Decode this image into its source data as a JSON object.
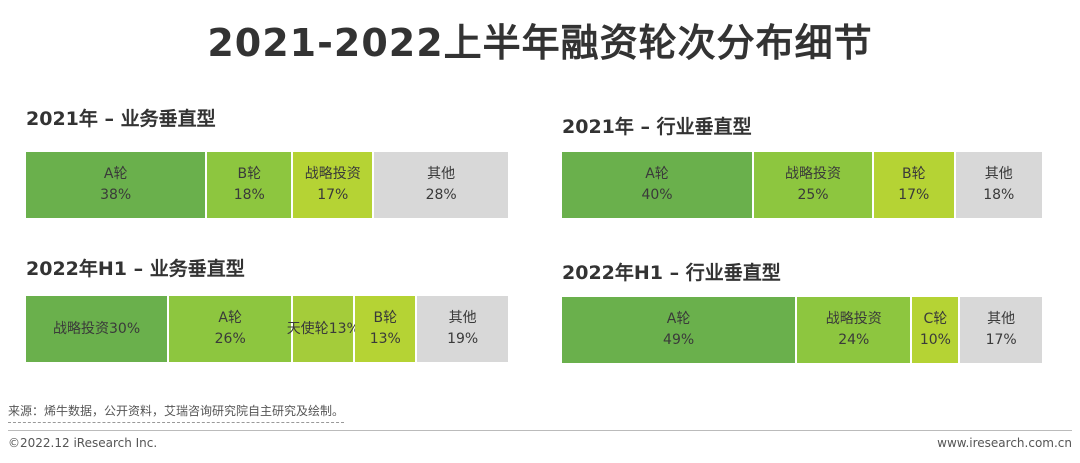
{
  "page": {
    "title": "2021-2022上半年融资轮次分布细节"
  },
  "chart_data": [
    {
      "type": "bar",
      "stacked": true,
      "orientation": "horizontal",
      "title": "2021年 – 业务垂直型",
      "unit": "%",
      "segments": [
        {
          "label": "A轮",
          "value": 38,
          "value_label": "38%",
          "color": "#6ab04c"
        },
        {
          "label": "B轮",
          "value": 18,
          "value_label": "18%",
          "color": "#8dc63f"
        },
        {
          "label": "战略投资",
          "value": 17,
          "value_label": "17%",
          "color": "#b5d334"
        },
        {
          "label": "其他",
          "value": 28,
          "value_label": "28%",
          "color": "#d8d8d8"
        }
      ]
    },
    {
      "type": "bar",
      "stacked": true,
      "orientation": "horizontal",
      "title": "2021年 – 行业垂直型",
      "unit": "%",
      "segments": [
        {
          "label": "A轮",
          "value": 40,
          "value_label": "40%",
          "color": "#6ab04c"
        },
        {
          "label": "战略投资",
          "value": 25,
          "value_label": "25%",
          "color": "#8dc63f"
        },
        {
          "label": "B轮",
          "value": 17,
          "value_label": "17%",
          "color": "#b5d334"
        },
        {
          "label": "其他",
          "value": 18,
          "value_label": "18%",
          "color": "#d8d8d8"
        }
      ]
    },
    {
      "type": "bar",
      "stacked": true,
      "orientation": "horizontal",
      "title": "2022年H1 – 业务垂直型",
      "unit": "%",
      "segments": [
        {
          "label": "战略投资",
          "value": 30,
          "value_label": "30%",
          "inline": true,
          "color": "#6ab04c"
        },
        {
          "label": "A轮",
          "value": 26,
          "value_label": "26%",
          "color": "#8dc63f"
        },
        {
          "label": "天使轮",
          "value": 13,
          "value_label": "13%",
          "inline": true,
          "color": "#a4cc3a"
        },
        {
          "label": "B轮",
          "value": 13,
          "value_label": "13%",
          "color": "#b5d334"
        },
        {
          "label": "其他",
          "value": 19,
          "value_label": "19%",
          "color": "#d8d8d8"
        }
      ]
    },
    {
      "type": "bar",
      "stacked": true,
      "orientation": "horizontal",
      "title": "2022年H1 – 行业垂直型",
      "unit": "%",
      "segments": [
        {
          "label": "A轮",
          "value": 49,
          "value_label": "49%",
          "color": "#6ab04c"
        },
        {
          "label": "战略投资",
          "value": 24,
          "value_label": "24%",
          "color": "#8dc63f"
        },
        {
          "label": "C轮",
          "value": 10,
          "value_label": "10%",
          "color": "#b5d334"
        },
        {
          "label": "其他",
          "value": 17,
          "value_label": "17%",
          "color": "#d8d8d8"
        }
      ]
    }
  ],
  "footer": {
    "source": "来源：烯牛数据，公开资料，艾瑞咨询研究院自主研究及绘制。",
    "copyright": "©2022.12 iResearch Inc.",
    "website": "www.iresearch.com.cn"
  }
}
